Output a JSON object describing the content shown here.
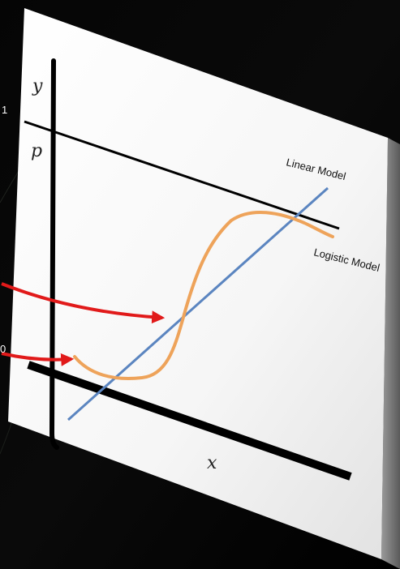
{
  "diagram": {
    "y_axis_label": "y",
    "x_axis_label": "x",
    "p_label": "p",
    "one_label": "1",
    "zero_label": "0",
    "linear_label": "Linear Model",
    "logistic_label": "Logistic Model"
  },
  "colors": {
    "background": "#000000",
    "panel": "#f4f4f4",
    "linear_line": "#5b85c0",
    "logistic_curve": "#eea35a",
    "arrows": "#e11a1a",
    "axes": "#000000"
  }
}
